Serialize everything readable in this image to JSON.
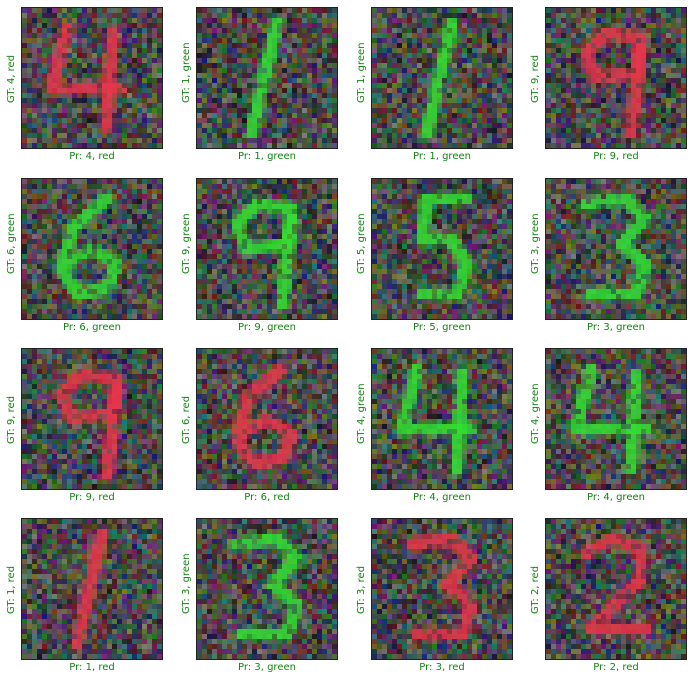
{
  "panels": [
    {
      "gt": "GT: 4, red",
      "pr": "Pr: 4, red",
      "digit": "4",
      "color": "red"
    },
    {
      "gt": "GT: 1, green",
      "pr": "Pr: 1, green",
      "digit": "1",
      "color": "green"
    },
    {
      "gt": "GT: 1, green",
      "pr": "Pr: 1, green",
      "digit": "1",
      "color": "green"
    },
    {
      "gt": "GT: 9, red",
      "pr": "Pr: 9, red",
      "digit": "9",
      "color": "red"
    },
    {
      "gt": "GT: 6, green",
      "pr": "Pr: 6, green",
      "digit": "6",
      "color": "green"
    },
    {
      "gt": "GT: 9, green",
      "pr": "Pr: 9, green",
      "digit": "9",
      "color": "green"
    },
    {
      "gt": "GT: 5, green",
      "pr": "Pr: 5, green",
      "digit": "5",
      "color": "green"
    },
    {
      "gt": "GT: 3, green",
      "pr": "Pr: 3, green",
      "digit": "3",
      "color": "green"
    },
    {
      "gt": "GT: 9, red",
      "pr": "Pr: 9, red",
      "digit": "9",
      "color": "red"
    },
    {
      "gt": "GT: 6, red",
      "pr": "Pr: 6, red",
      "digit": "6",
      "color": "red"
    },
    {
      "gt": "GT: 4, green",
      "pr": "Pr: 4, green",
      "digit": "4",
      "color": "green"
    },
    {
      "gt": "GT: 4, green",
      "pr": "Pr: 4, green",
      "digit": "4",
      "color": "green"
    },
    {
      "gt": "GT: 1, red",
      "pr": "Pr: 1, red",
      "digit": "1",
      "color": "red"
    },
    {
      "gt": "GT: 3, green",
      "pr": "Pr: 3, green",
      "digit": "3",
      "color": "green"
    },
    {
      "gt": "GT: 3, red",
      "pr": "Pr: 3, red",
      "digit": "3",
      "color": "red"
    },
    {
      "gt": "GT: 2, red",
      "pr": "Pr: 2, red",
      "digit": "2",
      "color": "red"
    }
  ],
  "label_color": "#138413",
  "stroke_colors": {
    "red": "#e8364a",
    "green": "#33e033"
  }
}
